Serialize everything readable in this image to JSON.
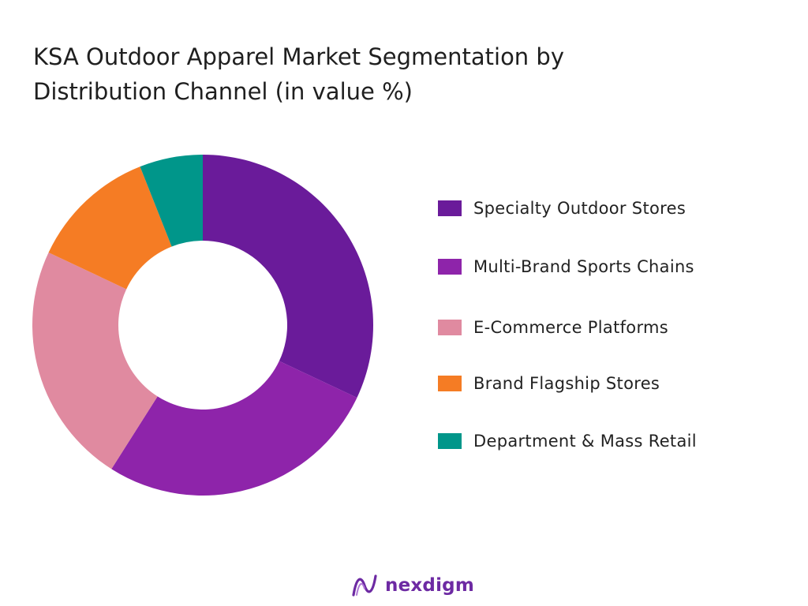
{
  "chart_data": {
    "type": "pie",
    "variant": "donut",
    "title_lines": [
      "KSA Outdoor Apparel Market Segmentation by",
      "Distribution Channel (in value %)"
    ],
    "unit": "%",
    "categories": [
      "Specialty Outdoor Stores",
      "Multi-Brand Sports Chains",
      "E-Commerce Platforms",
      "Brand Flagship Stores",
      "Department & Mass Retail"
    ],
    "values": [
      32,
      27,
      23,
      12,
      6
    ],
    "colors": [
      "#6a1b9a",
      "#8e24aa",
      "#e08aa0",
      "#f57c24",
      "#00968a"
    ],
    "legend_position": "right",
    "start_angle_deg": 0,
    "direction": "clockwise"
  },
  "brand": {
    "name": "nexdigm",
    "logo_color": "#6d2aa3"
  }
}
